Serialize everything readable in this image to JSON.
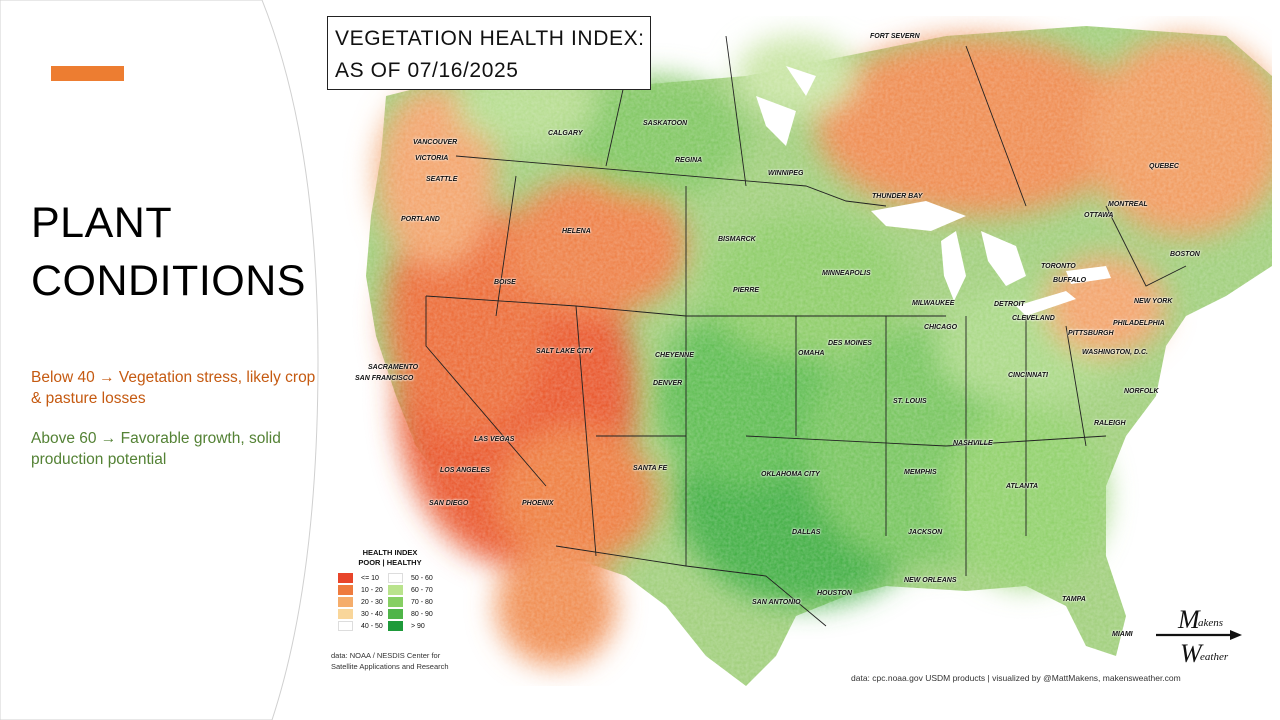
{
  "slide": {
    "title_line1": "PLANT",
    "title_line2": "CONDITIONS",
    "note_below": "Below 40 → Vegetation stress, likely crop & pasture losses",
    "note_above": "Above 60 → Favorable growth, solid production potential",
    "colors": {
      "accent": "#ed7d31",
      "below_text": "#c55a11",
      "above_text": "#548235"
    }
  },
  "map": {
    "title_line1": "VEGETATION HEALTH INDEX:",
    "title_line2": "AS OF 07/16/2025",
    "cities": [
      "FORT SEVERN",
      "CALGARY",
      "SASKATOON",
      "REGINA",
      "WINNIPEG",
      "VANCOUVER",
      "VICTORIA",
      "SEATTLE",
      "PORTLAND",
      "HELENA",
      "BISMARCK",
      "THUNDER BAY",
      "QUEBEC",
      "MONTREAL",
      "OTTAWA",
      "TORONTO",
      "BUFFALO",
      "BOSTON",
      "BOISE",
      "PIERRE",
      "MINNEAPOLIS",
      "MILWAUKEE",
      "DETROIT",
      "CLEVELAND",
      "NEW YORK",
      "PITTSBURGH",
      "PHILADELPHIA",
      "WASHINGTON, D.C.",
      "CHICAGO",
      "DES MOINES",
      "OMAHA",
      "SALT LAKE CITY",
      "CHEYENNE",
      "DENVER",
      "SACRAMENTO",
      "SAN FRANCISCO",
      "CINCINNATI",
      "NORFOLK",
      "ST. LOUIS",
      "RALEIGH",
      "NASHVILLE",
      "LAS VEGAS",
      "LOS ANGELES",
      "SANTA FE",
      "OKLAHOMA CITY",
      "MEMPHIS",
      "ATLANTA",
      "SAN DIEGO",
      "PHOENIX",
      "DALLAS",
      "JACKSON",
      "NEW ORLEANS",
      "SAN ANTONIO",
      "HOUSTON",
      "TAMPA",
      "MIAMI"
    ],
    "legend": {
      "title_line1": "HEALTH INDEX",
      "title_line2": "POOR | HEALTHY",
      "items": [
        {
          "label": "<= 10",
          "color": "#e8452a"
        },
        {
          "label": "50 - 60",
          "color": "#ffffff"
        },
        {
          "label": "10 - 20",
          "color": "#ee7b3e"
        },
        {
          "label": "60 - 70",
          "color": "#b9e38c"
        },
        {
          "label": "20 - 30",
          "color": "#f5ad6b"
        },
        {
          "label": "70 - 80",
          "color": "#86cf63"
        },
        {
          "label": "30 - 40",
          "color": "#f9d69a"
        },
        {
          "label": "80 - 90",
          "color": "#4fb548"
        },
        {
          "label": "40 - 50",
          "color": "#ffffff"
        },
        {
          "label": "> 90",
          "color": "#1e9a3a"
        }
      ]
    },
    "source_left": "data: NOAA / NESDIS Center for Satellite Applications and Research",
    "source_right": "data: cpc.noaa.gov USDM products | visualized by @MattMakens, makensweather.com",
    "logo_line1": "akens",
    "logo_line2": "eather",
    "logo_m": "M",
    "logo_w": "W"
  }
}
